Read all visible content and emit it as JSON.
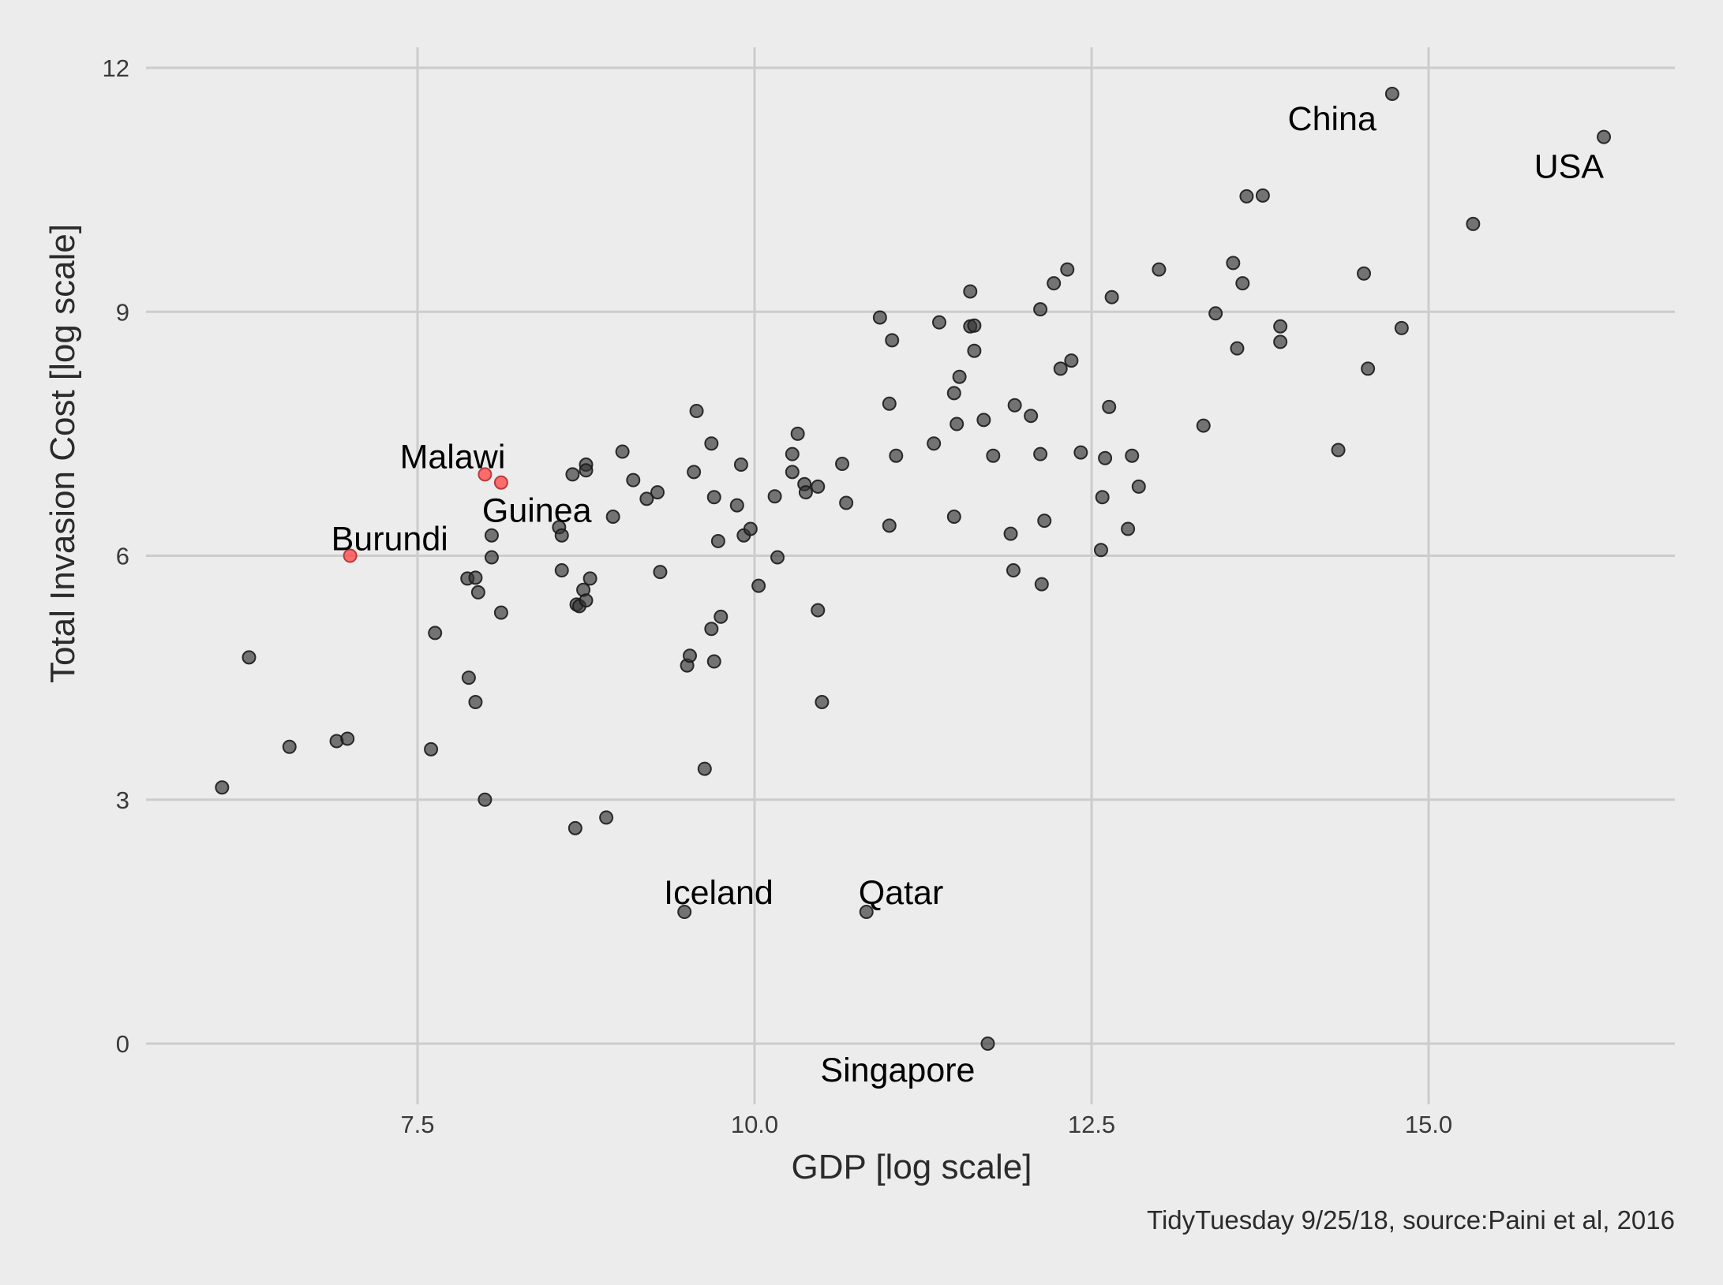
{
  "chart_data": {
    "type": "scatter",
    "title": "",
    "xlabel": "GDP [log scale]",
    "ylabel": "Total Invasion Cost [log scale]",
    "caption": "TidyTuesday 9/25/18, source:Paini et al, 2016",
    "xlim": [
      5.5,
      16.5
    ],
    "ylim": [
      -0.5,
      12.2
    ],
    "xticks": [
      7.5,
      10.0,
      12.5,
      15.0
    ],
    "xtick_labels": [
      "7.5",
      "10.0",
      "12.5",
      "15.0"
    ],
    "yticks": [
      0,
      3,
      6,
      9,
      12
    ],
    "ytick_labels": [
      "0",
      "3",
      "6",
      "9",
      "12"
    ],
    "grid": true,
    "legend": "none",
    "colors": {
      "default": "#333333",
      "highlight": "#ff4d4d",
      "background": "#ececec",
      "grid": "#cccccc"
    },
    "points": [
      {
        "x": 6.05,
        "y": 3.15
      },
      {
        "x": 6.25,
        "y": 4.75
      },
      {
        "x": 6.55,
        "y": 3.65
      },
      {
        "x": 6.9,
        "y": 3.72
      },
      {
        "x": 6.98,
        "y": 3.75
      },
      {
        "x": 7.0,
        "y": 6.0,
        "highlight": true
      },
      {
        "x": 7.6,
        "y": 3.62
      },
      {
        "x": 7.63,
        "y": 5.05
      },
      {
        "x": 7.88,
        "y": 4.5
      },
      {
        "x": 7.87,
        "y": 5.72
      },
      {
        "x": 7.93,
        "y": 5.73
      },
      {
        "x": 7.95,
        "y": 5.55
      },
      {
        "x": 7.93,
        "y": 4.2
      },
      {
        "x": 8.0,
        "y": 3.0
      },
      {
        "x": 8.0,
        "y": 7.0,
        "highlight": true
      },
      {
        "x": 8.05,
        "y": 6.25
      },
      {
        "x": 8.05,
        "y": 5.98
      },
      {
        "x": 8.12,
        "y": 6.9,
        "highlight": true
      },
      {
        "x": 8.12,
        "y": 5.3
      },
      {
        "x": 8.55,
        "y": 6.35
      },
      {
        "x": 8.57,
        "y": 6.25
      },
      {
        "x": 8.57,
        "y": 5.82
      },
      {
        "x": 8.65,
        "y": 7.0
      },
      {
        "x": 8.67,
        "y": 2.65
      },
      {
        "x": 8.68,
        "y": 5.4
      },
      {
        "x": 8.7,
        "y": 5.38
      },
      {
        "x": 8.73,
        "y": 5.58
      },
      {
        "x": 8.75,
        "y": 5.45
      },
      {
        "x": 8.75,
        "y": 7.12
      },
      {
        "x": 8.75,
        "y": 7.05
      },
      {
        "x": 8.78,
        "y": 5.72
      },
      {
        "x": 8.9,
        "y": 2.78
      },
      {
        "x": 8.95,
        "y": 6.48
      },
      {
        "x": 9.02,
        "y": 7.28
      },
      {
        "x": 9.1,
        "y": 6.93
      },
      {
        "x": 9.2,
        "y": 6.7
      },
      {
        "x": 9.28,
        "y": 6.78
      },
      {
        "x": 9.3,
        "y": 5.8
      },
      {
        "x": 9.48,
        "y": 1.62
      },
      {
        "x": 9.5,
        "y": 4.65
      },
      {
        "x": 9.52,
        "y": 4.77
      },
      {
        "x": 9.55,
        "y": 7.03
      },
      {
        "x": 9.57,
        "y": 7.78
      },
      {
        "x": 9.63,
        "y": 3.38
      },
      {
        "x": 9.68,
        "y": 7.38
      },
      {
        "x": 9.68,
        "y": 5.1
      },
      {
        "x": 9.7,
        "y": 4.7
      },
      {
        "x": 9.7,
        "y": 6.72
      },
      {
        "x": 9.73,
        "y": 6.18
      },
      {
        "x": 9.75,
        "y": 5.25
      },
      {
        "x": 9.87,
        "y": 6.62
      },
      {
        "x": 9.9,
        "y": 7.12
      },
      {
        "x": 9.92,
        "y": 6.25
      },
      {
        "x": 9.97,
        "y": 6.33
      },
      {
        "x": 10.03,
        "y": 5.63
      },
      {
        "x": 10.15,
        "y": 6.73
      },
      {
        "x": 10.17,
        "y": 5.98
      },
      {
        "x": 10.28,
        "y": 7.25
      },
      {
        "x": 10.28,
        "y": 7.03
      },
      {
        "x": 10.32,
        "y": 7.5
      },
      {
        "x": 10.37,
        "y": 6.88
      },
      {
        "x": 10.38,
        "y": 6.78
      },
      {
        "x": 10.47,
        "y": 6.85
      },
      {
        "x": 10.47,
        "y": 5.33
      },
      {
        "x": 10.5,
        "y": 4.2
      },
      {
        "x": 10.65,
        "y": 7.13
      },
      {
        "x": 10.68,
        "y": 6.65
      },
      {
        "x": 10.83,
        "y": 1.62
      },
      {
        "x": 10.93,
        "y": 8.93
      },
      {
        "x": 11.0,
        "y": 6.37
      },
      {
        "x": 11.0,
        "y": 7.87
      },
      {
        "x": 11.02,
        "y": 8.65
      },
      {
        "x": 11.05,
        "y": 7.23
      },
      {
        "x": 11.33,
        "y": 7.38
      },
      {
        "x": 11.37,
        "y": 8.87
      },
      {
        "x": 11.48,
        "y": 6.48
      },
      {
        "x": 11.48,
        "y": 8.0
      },
      {
        "x": 11.5,
        "y": 7.62
      },
      {
        "x": 11.52,
        "y": 8.2
      },
      {
        "x": 11.6,
        "y": 9.25
      },
      {
        "x": 11.6,
        "y": 8.82
      },
      {
        "x": 11.63,
        "y": 8.83
      },
      {
        "x": 11.63,
        "y": 8.52
      },
      {
        "x": 11.7,
        "y": 7.67
      },
      {
        "x": 11.73,
        "y": 0.0
      },
      {
        "x": 11.77,
        "y": 7.23
      },
      {
        "x": 11.9,
        "y": 6.27
      },
      {
        "x": 11.92,
        "y": 5.82
      },
      {
        "x": 11.93,
        "y": 7.85
      },
      {
        "x": 12.05,
        "y": 7.72
      },
      {
        "x": 12.12,
        "y": 9.03
      },
      {
        "x": 12.12,
        "y": 7.25
      },
      {
        "x": 12.13,
        "y": 5.65
      },
      {
        "x": 12.15,
        "y": 6.43
      },
      {
        "x": 12.22,
        "y": 9.35
      },
      {
        "x": 12.27,
        "y": 8.3
      },
      {
        "x": 12.32,
        "y": 9.52
      },
      {
        "x": 12.35,
        "y": 8.4
      },
      {
        "x": 12.42,
        "y": 7.27
      },
      {
        "x": 12.57,
        "y": 6.07
      },
      {
        "x": 12.58,
        "y": 6.72
      },
      {
        "x": 12.6,
        "y": 7.2
      },
      {
        "x": 12.63,
        "y": 7.83
      },
      {
        "x": 12.65,
        "y": 9.18
      },
      {
        "x": 12.77,
        "y": 6.33
      },
      {
        "x": 12.8,
        "y": 7.23
      },
      {
        "x": 12.85,
        "y": 6.85
      },
      {
        "x": 13.0,
        "y": 9.52
      },
      {
        "x": 13.33,
        "y": 7.6
      },
      {
        "x": 13.42,
        "y": 8.98
      },
      {
        "x": 13.55,
        "y": 9.6
      },
      {
        "x": 13.58,
        "y": 8.55
      },
      {
        "x": 13.62,
        "y": 9.35
      },
      {
        "x": 13.65,
        "y": 10.42
      },
      {
        "x": 13.77,
        "y": 10.43
      },
      {
        "x": 13.9,
        "y": 8.63
      },
      {
        "x": 13.9,
        "y": 8.82
      },
      {
        "x": 14.33,
        "y": 7.3
      },
      {
        "x": 14.52,
        "y": 9.47
      },
      {
        "x": 14.55,
        "y": 8.3
      },
      {
        "x": 14.73,
        "y": 11.68
      },
      {
        "x": 14.8,
        "y": 8.8
      },
      {
        "x": 15.33,
        "y": 10.08
      },
      {
        "x": 16.3,
        "y": 11.15
      }
    ],
    "annotations": [
      {
        "text": "China",
        "x": 14.73,
        "y": 11.68,
        "anchor": "end",
        "dx": -20,
        "dy": 46
      },
      {
        "text": "USA",
        "x": 16.3,
        "y": 11.15,
        "anchor": "end",
        "dx": 0,
        "dy": 52
      },
      {
        "text": "Malawi",
        "x": 8.0,
        "y": 7.0,
        "anchor": "end",
        "dx": 26,
        "dy": -8
      },
      {
        "text": "Guinea",
        "x": 8.12,
        "y": 6.9,
        "anchor": "start",
        "dx": -24,
        "dy": 50
      },
      {
        "text": "Burundi",
        "x": 7.0,
        "y": 6.0,
        "anchor": "start",
        "dx": -24,
        "dy": -7
      },
      {
        "text": "Iceland",
        "x": 9.48,
        "y": 1.62,
        "anchor": "start",
        "dx": -26,
        "dy": -10
      },
      {
        "text": "Qatar",
        "x": 10.83,
        "y": 1.62,
        "anchor": "start",
        "dx": -10,
        "dy": -10
      },
      {
        "text": "Singapore",
        "x": 11.73,
        "y": 0.0,
        "anchor": "end",
        "dx": -16,
        "dy": 48
      }
    ]
  }
}
